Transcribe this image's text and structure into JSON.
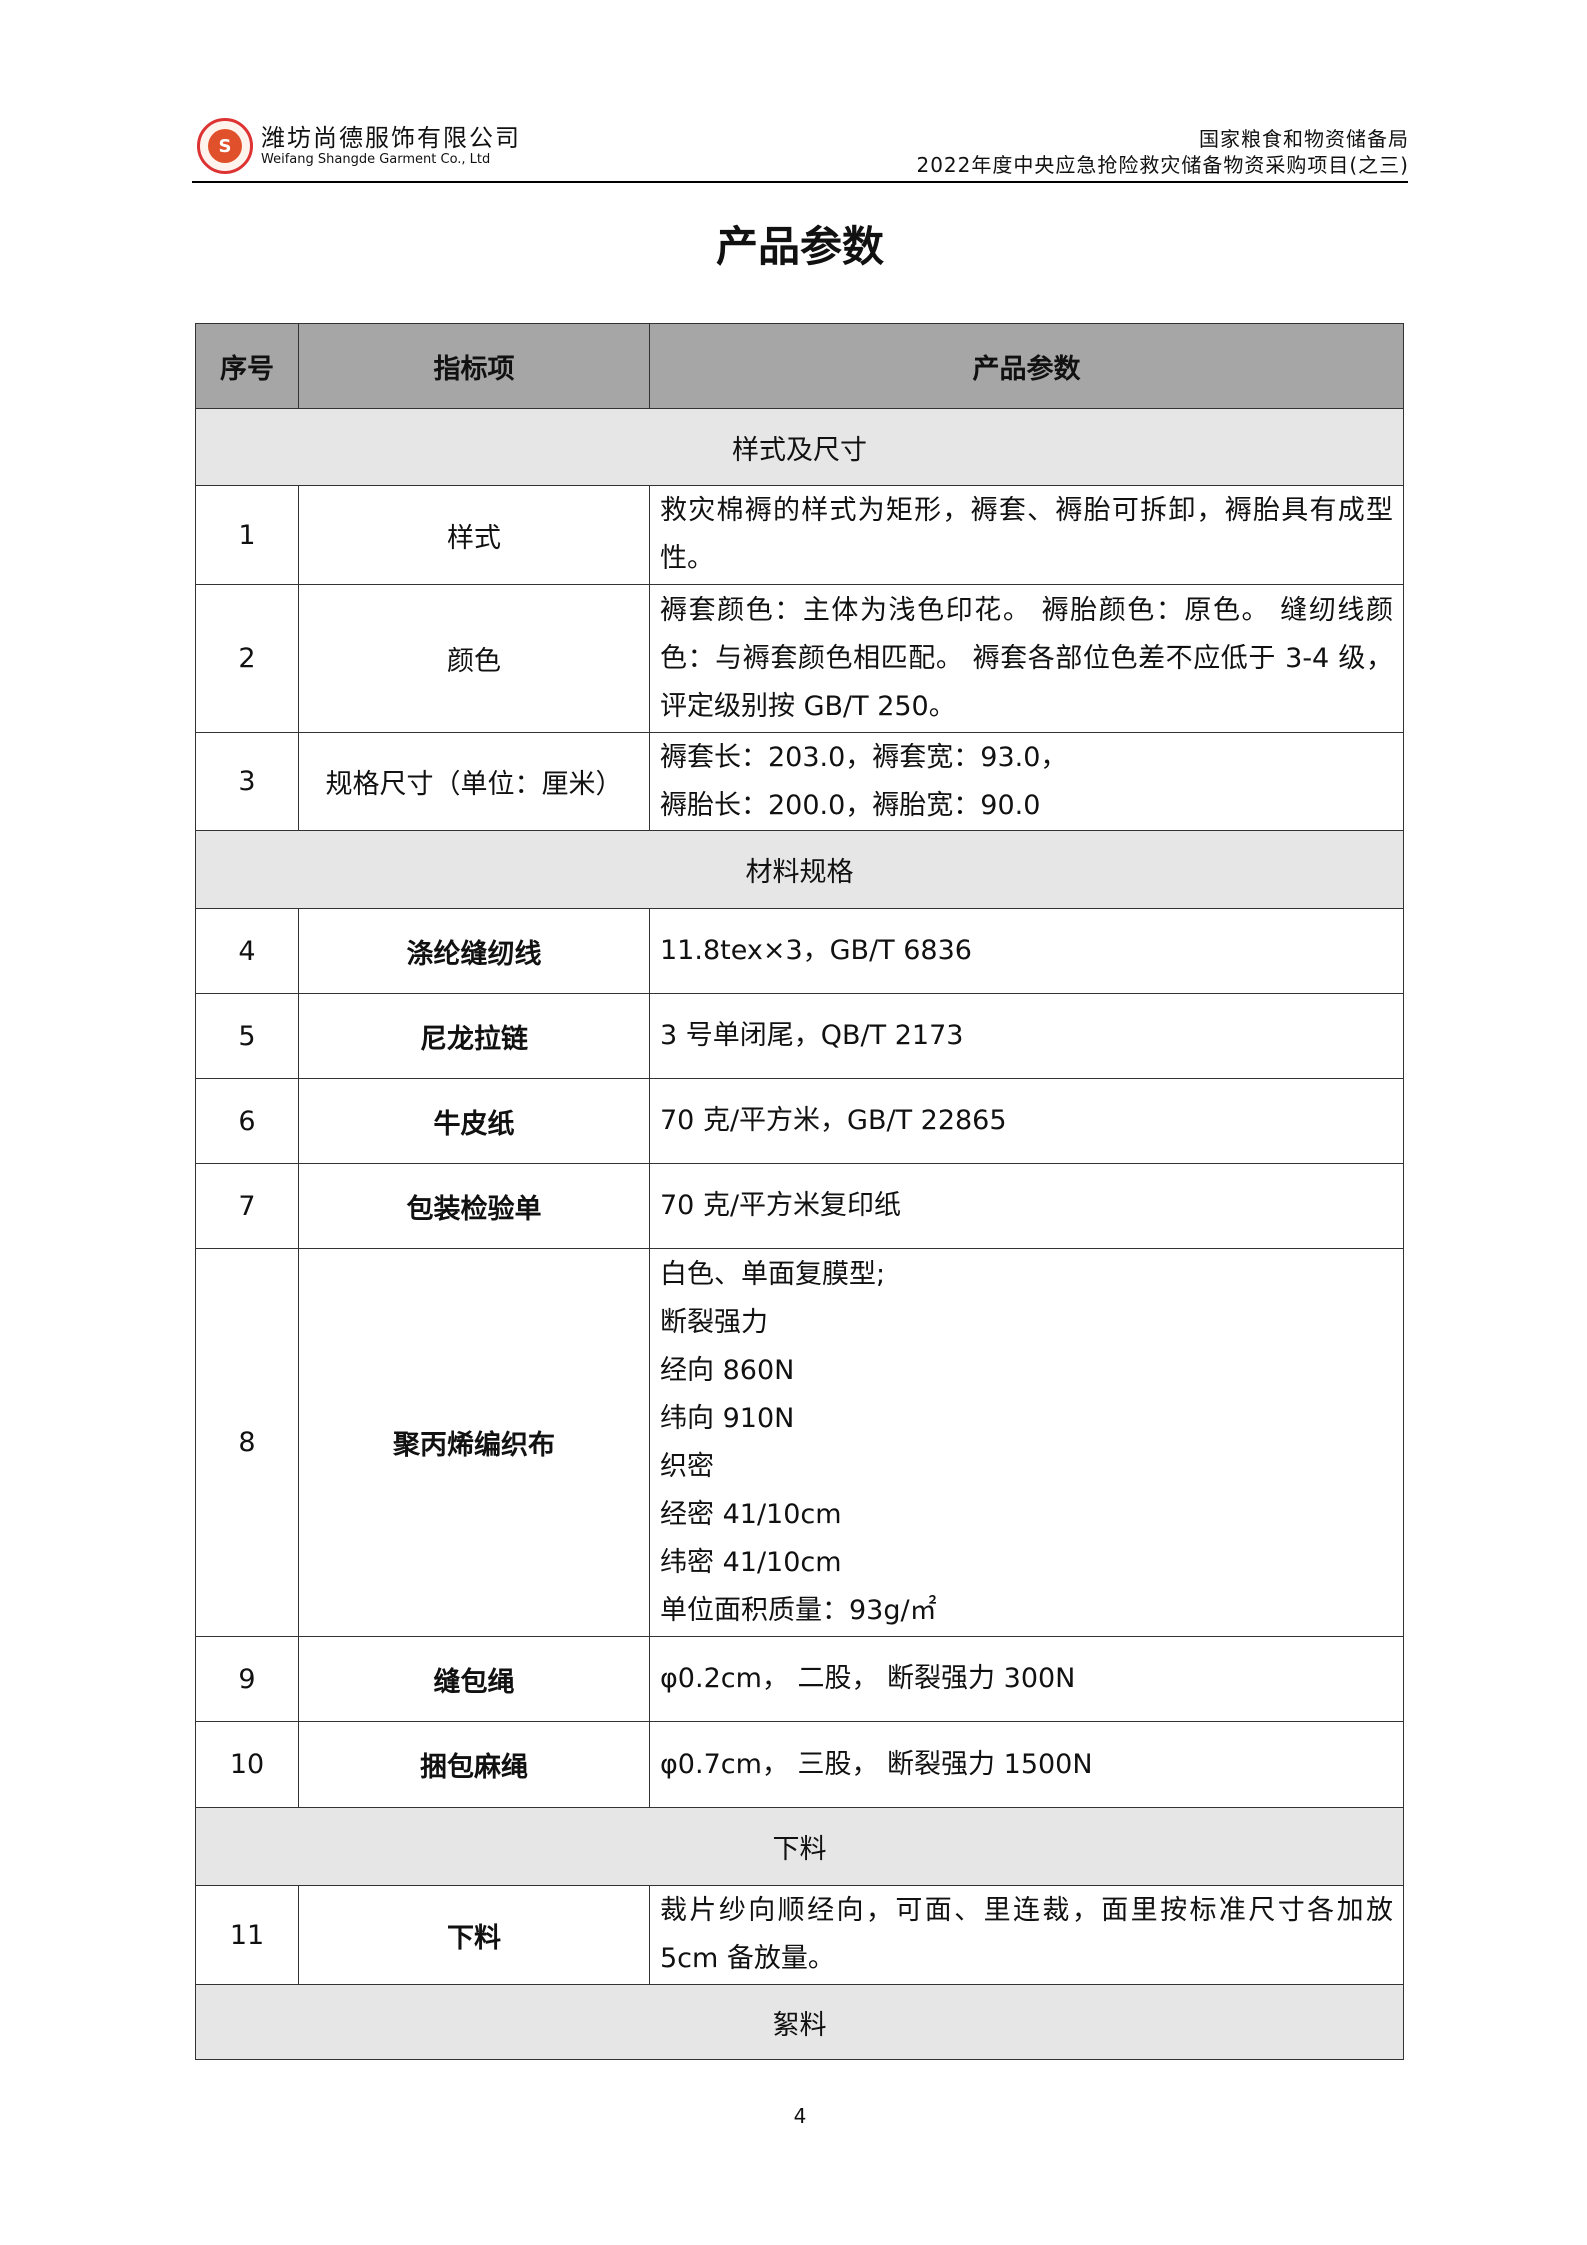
{
  "header": {
    "company_cn": "潍坊尚德服饰有限公司",
    "company_en": "Weifang Shangde Garment Co., Ltd",
    "agency": "国家粮食和物资储备局",
    "project": "2022年度中央应急抢险救灾储备物资采购项目(之三)"
  },
  "title": "产品参数",
  "table": {
    "columns": [
      "序号",
      "指标项",
      "产品参数"
    ],
    "sections": {
      "s1": "样式及尺寸",
      "s2": "材料规格",
      "s3": "下料",
      "s4": "絮料"
    },
    "rows": [
      {
        "no": "1",
        "item": "样式",
        "lines": [
          "救灾棉褥的样式为矩形，褥套、褥胎可拆卸，褥胎具有成型性。"
        ]
      },
      {
        "no": "2",
        "item": "颜色",
        "lines": [
          "褥套颜色：主体为浅色印花。 褥胎颜色：原色。 缝纫线颜色：与褥套颜色相匹配。 褥套各部位色差不应低于 3-4 级，评定级别按 GB/T 250。"
        ]
      },
      {
        "no": "3",
        "item": "规格尺寸（单位：厘米）",
        "lines": [
          "褥套长：203.0，褥套宽：93.0，",
          "褥胎长：200.0，褥胎宽：90.0"
        ]
      },
      {
        "no": "4",
        "item": "涤纶缝纫线",
        "lines": [
          "11.8tex×3，GB/T 6836"
        ]
      },
      {
        "no": "5",
        "item": "尼龙拉链",
        "lines": [
          "3 号单闭尾，QB/T 2173"
        ]
      },
      {
        "no": "6",
        "item": "牛皮纸",
        "lines": [
          "70 克/平方米，GB/T 22865"
        ]
      },
      {
        "no": "7",
        "item": "包装检验单",
        "lines": [
          "70 克/平方米复印纸"
        ]
      },
      {
        "no": "8",
        "item": "聚丙烯编织布",
        "lines": [
          "白色、单面复膜型;",
          "断裂强力",
          "经向 860N",
          "纬向 910N",
          "织密",
          "经密 41/10cm",
          "纬密 41/10cm",
          "单位面积质量：93g/㎡"
        ]
      },
      {
        "no": "9",
        "item": "缝包绳",
        "lines": [
          "φ0.2cm，  二股，  断裂强力 300N"
        ]
      },
      {
        "no": "10",
        "item": "捆包麻绳",
        "lines": [
          "φ0.7cm，  三股，  断裂强力 1500N"
        ]
      },
      {
        "no": "11",
        "item": "下料",
        "lines": [
          "裁片纱向顺经向，可面、里连裁，面里按标准尺寸各加放 5cm 备放量。"
        ]
      }
    ]
  },
  "page_number": "4"
}
